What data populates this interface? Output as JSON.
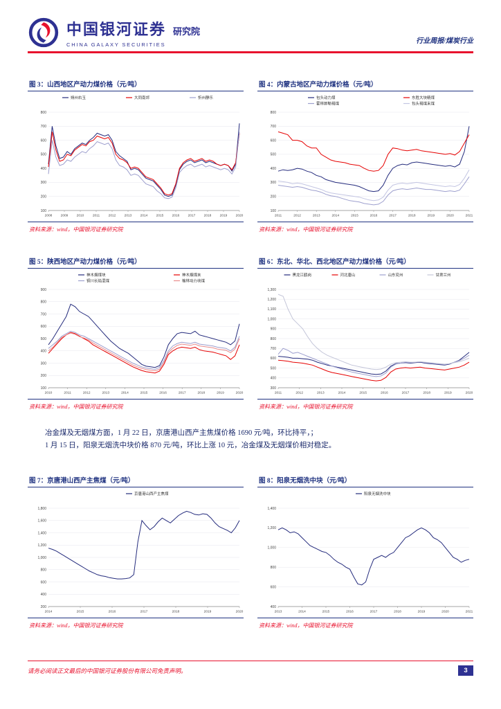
{
  "header": {
    "brand_cn": "中国银河证券",
    "brand_suffix": "研究院",
    "brand_en": "CHINA GALAXY SECURITIES",
    "doc_type": "行业周报/煤炭行业"
  },
  "body_text": {
    "para1": "冶金煤及无烟煤方面，1 月 22 日，京唐港山西产主焦煤价格 1690 元/吨，环比持平，；",
    "para2": "1 月 15 日，阳泉无烟洗中块价格 870 元/吨，环比上涨 10 元，冶金煤及无烟煤价相对稳定。"
  },
  "source_note": "资料来源：wind，中国银河证券研究院",
  "footer": {
    "disclaimer": "请务必阅读正文最后的中国银河证券股份有限公司免责声明。",
    "page_number": "3"
  },
  "colors": {
    "brand_blue": "#2E3192",
    "accent_red": "#E8112D",
    "title_navy": "#1F3280"
  },
  "chart_data": [
    {
      "id": "fig3",
      "type": "line",
      "title": "图 3：山西地区产动力煤价格（元/吨）",
      "x_ticks": [
        "2008",
        "2009",
        "2010",
        "2011",
        "2012",
        "2013",
        "2014",
        "2015",
        "2016",
        "2017",
        "2018",
        "2019",
        "2020"
      ],
      "ylim": [
        100,
        800
      ],
      "y_step": 100,
      "grid": true,
      "legend_position": "top",
      "legend_cols": 3,
      "series": [
        {
          "name": "朔州右玉",
          "color": "#232A7C",
          "values": [
            430,
            700,
            560,
            470,
            480,
            520,
            500,
            540,
            560,
            580,
            570,
            600,
            620,
            650,
            640,
            630,
            640,
            600,
            520,
            490,
            470,
            450,
            390,
            400,
            390,
            360,
            330,
            320,
            310,
            280,
            250,
            210,
            200,
            210,
            280,
            390,
            430,
            450,
            460,
            440,
            450,
            460,
            440,
            450,
            440,
            430,
            420,
            430,
            420,
            380,
            430,
            720
          ]
        },
        {
          "name": "大同南郊",
          "color": "#E60000",
          "values": [
            410,
            660,
            530,
            450,
            460,
            500,
            490,
            530,
            550,
            570,
            560,
            590,
            600,
            630,
            620,
            610,
            620,
            580,
            500,
            470,
            460,
            440,
            400,
            410,
            400,
            370,
            340,
            330,
            320,
            290,
            260,
            220,
            210,
            220,
            290,
            400,
            440,
            460,
            470,
            450,
            460,
            470,
            450,
            460,
            450,
            430,
            420,
            430,
            420,
            390,
            440,
            650
          ]
        },
        {
          "name": "忻州静乐",
          "color": "#9D9FCE",
          "values": [
            360,
            600,
            480,
            420,
            430,
            460,
            450,
            480,
            500,
            520,
            510,
            540,
            560,
            590,
            580,
            570,
            580,
            540,
            460,
            420,
            410,
            390,
            350,
            360,
            350,
            320,
            290,
            280,
            270,
            240,
            220,
            190,
            185,
            195,
            260,
            370,
            400,
            420,
            430,
            410,
            420,
            430,
            410,
            420,
            410,
            400,
            390,
            400,
            390,
            360,
            410,
            660
          ]
        }
      ]
    },
    {
      "id": "fig4",
      "type": "line",
      "title": "图 4：内蒙古地区产动力煤价格（元/吨）",
      "x_ticks": [
        "2011",
        "2012",
        "2013",
        "2014",
        "2015",
        "2016",
        "2017",
        "2018",
        "2019",
        "2020",
        "2021"
      ],
      "ylim": [
        100,
        800
      ],
      "y_step": 100,
      "grid": true,
      "legend_position": "top",
      "legend_cols": 2,
      "series": [
        {
          "name": "包头动力煤",
          "color": "#232A7C",
          "values": [
            380,
            390,
            385,
            390,
            400,
            395,
            380,
            370,
            350,
            340,
            320,
            310,
            300,
            295,
            290,
            285,
            280,
            270,
            255,
            240,
            235,
            240,
            280,
            350,
            400,
            420,
            430,
            425,
            440,
            445,
            440,
            435,
            430,
            425,
            420,
            415,
            420,
            410,
            430,
            520,
            700
          ]
        },
        {
          "name": "东胜大块精煤",
          "color": "#E60000",
          "values": [
            660,
            650,
            640,
            600,
            600,
            590,
            560,
            545,
            545,
            500,
            480,
            460,
            450,
            445,
            440,
            430,
            425,
            420,
            400,
            385,
            380,
            385,
            420,
            500,
            545,
            540,
            530,
            525,
            530,
            535,
            525,
            520,
            515,
            510,
            505,
            500,
            505,
            495,
            520,
            580,
            640
          ]
        },
        {
          "name": "霍林郭勒褐煤",
          "color": "#9D9FCE",
          "values": [
            280,
            275,
            270,
            265,
            270,
            265,
            255,
            245,
            240,
            230,
            215,
            205,
            200,
            190,
            180,
            170,
            165,
            160,
            150,
            145,
            140,
            145,
            165,
            210,
            240,
            250,
            255,
            250,
            255,
            260,
            255,
            250,
            250,
            245,
            240,
            235,
            240,
            235,
            245,
            290,
            340
          ]
        },
        {
          "name": "包头褐煤末煤",
          "color": "#C3C5E2",
          "values": [
            310,
            305,
            300,
            290,
            295,
            290,
            280,
            270,
            260,
            250,
            235,
            225,
            220,
            215,
            210,
            205,
            200,
            195,
            185,
            175,
            170,
            175,
            195,
            245,
            280,
            290,
            295,
            290,
            295,
            300,
            295,
            290,
            285,
            280,
            275,
            270,
            275,
            270,
            285,
            330,
            390
          ]
        }
      ]
    },
    {
      "id": "fig5",
      "type": "line",
      "title": "图 5：陕西地区产动力煤价格（元/吨）",
      "x_ticks": [
        "2010",
        "2011",
        "2012",
        "2013",
        "2014",
        "2015",
        "2016",
        "2017",
        "2018",
        "2019",
        "2020"
      ],
      "ylim": [
        100,
        900
      ],
      "y_step": 100,
      "grid": true,
      "legend_position": "top",
      "legend_cols": 2,
      "series": [
        {
          "name": "神木烟煤块",
          "color": "#232A7C",
          "values": [
            450,
            500,
            560,
            620,
            680,
            780,
            760,
            720,
            700,
            680,
            640,
            600,
            560,
            520,
            480,
            450,
            420,
            400,
            380,
            350,
            320,
            290,
            275,
            270,
            265,
            280,
            350,
            450,
            500,
            540,
            550,
            545,
            540,
            560,
            530,
            520,
            510,
            500,
            490,
            480,
            470,
            450,
            480,
            620
          ]
        },
        {
          "name": "神木烟煤末",
          "color": "#E60000",
          "values": [
            380,
            420,
            460,
            500,
            530,
            550,
            540,
            520,
            500,
            480,
            450,
            430,
            410,
            390,
            370,
            350,
            330,
            310,
            290,
            270,
            255,
            240,
            230,
            225,
            220,
            235,
            290,
            370,
            400,
            420,
            430,
            425,
            420,
            430,
            410,
            400,
            395,
            390,
            380,
            370,
            360,
            330,
            360,
            450
          ]
        },
        {
          "name": "铜川长焰混煤",
          "color": "#9D9FCE",
          "values": [
            420,
            450,
            480,
            520,
            540,
            560,
            550,
            530,
            520,
            500,
            480,
            460,
            440,
            420,
            400,
            380,
            360,
            340,
            320,
            300,
            285,
            270,
            260,
            255,
            250,
            265,
            320,
            400,
            440,
            460,
            470,
            465,
            460,
            470,
            455,
            450,
            445,
            440,
            430,
            425,
            420,
            400,
            430,
            520
          ]
        },
        {
          "name": "榆林动力块煤",
          "color": "#E98A8A",
          "values": [
            400,
            430,
            470,
            510,
            530,
            545,
            535,
            515,
            505,
            490,
            465,
            445,
            425,
            405,
            385,
            365,
            345,
            325,
            305,
            285,
            270,
            258,
            248,
            242,
            238,
            250,
            305,
            385,
            420,
            445,
            455,
            450,
            445,
            455,
            440,
            435,
            430,
            425,
            415,
            410,
            405,
            385,
            415,
            500
          ]
        }
      ]
    },
    {
      "id": "fig6",
      "type": "line",
      "title": "图 6：东北、华北、西北地区产动力煤价格（元/吨）",
      "x_ticks": [
        "2011",
        "2012",
        "2013",
        "2014",
        "2015",
        "2016",
        "2017",
        "2018",
        "2019",
        "2020"
      ],
      "ylim": [
        300,
        1300
      ],
      "y_step": 100,
      "grid": true,
      "legend_position": "top",
      "legend_cols": 4,
      "series": [
        {
          "name": "黑龙江鹤岗",
          "color": "#232A7C",
          "values": [
            620,
            615,
            610,
            600,
            600,
            595,
            590,
            580,
            560,
            545,
            530,
            520,
            510,
            500,
            490,
            480,
            470,
            460,
            450,
            440,
            435,
            440,
            470,
            520,
            545,
            550,
            555,
            550,
            555,
            560,
            550,
            545,
            540,
            535,
            530,
            540,
            560,
            580,
            620,
            660
          ]
        },
        {
          "name": "河北唐山",
          "color": "#E60000",
          "values": [
            580,
            575,
            570,
            560,
            555,
            550,
            540,
            530,
            510,
            490,
            470,
            455,
            445,
            435,
            425,
            415,
            405,
            395,
            385,
            375,
            370,
            375,
            405,
            460,
            490,
            500,
            505,
            500,
            505,
            510,
            500,
            495,
            490,
            485,
            480,
            490,
            500,
            510,
            530,
            560
          ]
        },
        {
          "name": "山东兖州",
          "color": "#9D9FCE",
          "values": [
            640,
            700,
            680,
            650,
            660,
            640,
            620,
            600,
            580,
            560,
            540,
            520,
            505,
            490,
            475,
            460,
            450,
            440,
            430,
            420,
            415,
            420,
            450,
            510,
            540,
            550,
            560,
            555,
            560,
            565,
            555,
            550,
            545,
            540,
            535,
            545,
            560,
            575,
            600,
            630
          ]
        },
        {
          "name": "甘肃兰州",
          "color": "#C4C6D9",
          "values": [
            1250,
            1230,
            1100,
            1000,
            950,
            900,
            820,
            750,
            700,
            660,
            630,
            610,
            590,
            570,
            550,
            530,
            520,
            510,
            500,
            490,
            485,
            490,
            510,
            540,
            555,
            560,
            565,
            560,
            560,
            565,
            560,
            555,
            550,
            545,
            540,
            545,
            555,
            565,
            580,
            600
          ]
        }
      ]
    },
    {
      "id": "fig7",
      "type": "line",
      "title": "图 7：京唐港山西产主焦煤（元/吨）",
      "x_ticks": [
        "2014",
        "2015",
        "2016",
        "2017",
        "2018",
        "2019",
        "2020"
      ],
      "ylim": [
        200,
        1800
      ],
      "y_step": 200,
      "grid": true,
      "legend_position": "top",
      "legend_cols": 1,
      "series": [
        {
          "name": "京唐港山西产主焦煤",
          "color": "#232A7C",
          "values": [
            1150,
            1130,
            1100,
            1060,
            1020,
            980,
            940,
            900,
            860,
            820,
            780,
            750,
            720,
            700,
            690,
            670,
            660,
            650,
            650,
            655,
            665,
            720,
            1250,
            1600,
            1520,
            1450,
            1500,
            1580,
            1640,
            1600,
            1560,
            1620,
            1680,
            1720,
            1750,
            1730,
            1700,
            1690,
            1710,
            1700,
            1640,
            1560,
            1500,
            1470,
            1440,
            1400,
            1480,
            1600
          ]
        }
      ]
    },
    {
      "id": "fig8",
      "type": "line",
      "title": "图 8：阳泉无烟洗中块（元/吨）",
      "x_ticks": [
        "2013",
        "2014",
        "2015",
        "2016",
        "2017",
        "2018",
        "2019",
        "2020",
        "2021"
      ],
      "ylim": [
        400,
        1400
      ],
      "y_step": 200,
      "grid": true,
      "legend_position": "top",
      "legend_cols": 1,
      "series": [
        {
          "name": "阳泉无烟洗中块",
          "color": "#232A7C",
          "values": [
            1180,
            1200,
            1180,
            1150,
            1160,
            1140,
            1100,
            1060,
            1020,
            1000,
            980,
            960,
            950,
            920,
            880,
            850,
            830,
            800,
            780,
            700,
            630,
            620,
            650,
            780,
            880,
            900,
            920,
            900,
            930,
            950,
            1000,
            1050,
            1100,
            1120,
            1150,
            1180,
            1200,
            1180,
            1150,
            1100,
            1080,
            1050,
            1000,
            950,
            900,
            880,
            850,
            870,
            880
          ]
        }
      ]
    }
  ]
}
